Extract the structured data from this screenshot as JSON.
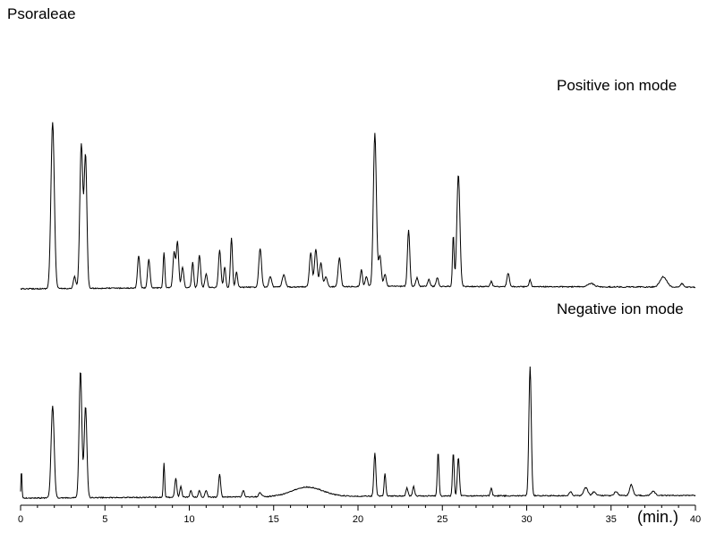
{
  "figure": {
    "title": "Psoraleae",
    "x_unit_label": "(min.)"
  },
  "chart_data": {
    "type": "line",
    "title": "Psoraleae",
    "xlabel": "(min.)",
    "ylabel": "",
    "xlim": [
      0,
      40
    ],
    "x_ticks": [
      "0",
      "5",
      "10",
      "15",
      "20",
      "25",
      "30",
      "35",
      "40"
    ],
    "x_tick_values": [
      0,
      5,
      10,
      15,
      20,
      25,
      30,
      35,
      40
    ],
    "grid": false,
    "legend": "none",
    "line_color": "#000000",
    "series": [
      {
        "name": "Positive ion mode",
        "baseline_drift": [
          [
            0,
            0
          ],
          [
            14,
            0.01
          ],
          [
            22,
            0.015
          ],
          [
            40,
            0.01
          ]
        ],
        "peaks": [
          [
            1.9,
            0.98,
            0.1
          ],
          [
            3.2,
            0.07,
            0.07
          ],
          [
            3.6,
            0.85,
            0.09
          ],
          [
            3.85,
            0.78,
            0.08
          ],
          [
            7.0,
            0.19,
            0.07
          ],
          [
            7.6,
            0.17,
            0.07
          ],
          [
            8.5,
            0.21,
            0.05
          ],
          [
            9.1,
            0.21,
            0.07
          ],
          [
            9.3,
            0.27,
            0.07
          ],
          [
            9.6,
            0.12,
            0.07
          ],
          [
            10.2,
            0.15,
            0.06
          ],
          [
            10.6,
            0.19,
            0.07
          ],
          [
            11.0,
            0.08,
            0.07
          ],
          [
            11.8,
            0.22,
            0.07
          ],
          [
            12.1,
            0.12,
            0.06
          ],
          [
            12.5,
            0.29,
            0.06
          ],
          [
            12.8,
            0.09,
            0.06
          ],
          [
            14.2,
            0.23,
            0.08
          ],
          [
            14.8,
            0.06,
            0.08
          ],
          [
            15.6,
            0.07,
            0.09
          ],
          [
            17.2,
            0.2,
            0.08
          ],
          [
            17.5,
            0.22,
            0.08
          ],
          [
            17.8,
            0.14,
            0.08
          ],
          [
            18.1,
            0.06,
            0.08
          ],
          [
            18.9,
            0.17,
            0.08
          ],
          [
            20.2,
            0.1,
            0.06
          ],
          [
            20.5,
            0.06,
            0.07
          ],
          [
            21.0,
            0.9,
            0.09
          ],
          [
            21.3,
            0.18,
            0.08
          ],
          [
            21.6,
            0.07,
            0.07
          ],
          [
            23.0,
            0.33,
            0.07
          ],
          [
            23.5,
            0.05,
            0.07
          ],
          [
            24.2,
            0.04,
            0.07
          ],
          [
            24.7,
            0.05,
            0.07
          ],
          [
            25.65,
            0.3,
            0.05
          ],
          [
            25.95,
            0.66,
            0.09
          ],
          [
            27.9,
            0.03,
            0.06
          ],
          [
            28.9,
            0.08,
            0.07
          ],
          [
            30.2,
            0.04,
            0.06
          ],
          [
            33.8,
            0.02,
            0.2
          ],
          [
            38.1,
            0.06,
            0.2
          ],
          [
            39.2,
            0.02,
            0.1
          ]
        ]
      },
      {
        "name": "Negative ion mode",
        "baseline_drift": [
          [
            0,
            0
          ],
          [
            15,
            0.01
          ],
          [
            21,
            0.015
          ],
          [
            40,
            0.02
          ]
        ],
        "peaks": [
          [
            0.05,
            0.21,
            0.03
          ],
          [
            1.9,
            0.69,
            0.09
          ],
          [
            3.55,
            0.95,
            0.08
          ],
          [
            3.85,
            0.68,
            0.08
          ],
          [
            8.5,
            0.26,
            0.04
          ],
          [
            9.2,
            0.14,
            0.06
          ],
          [
            9.5,
            0.08,
            0.06
          ],
          [
            10.1,
            0.05,
            0.06
          ],
          [
            10.6,
            0.05,
            0.06
          ],
          [
            11.0,
            0.05,
            0.06
          ],
          [
            11.8,
            0.17,
            0.06
          ],
          [
            13.2,
            0.05,
            0.06
          ],
          [
            14.2,
            0.03,
            0.08
          ],
          [
            17.0,
            0.07,
            0.9
          ],
          [
            21.0,
            0.32,
            0.06
          ],
          [
            21.6,
            0.17,
            0.05
          ],
          [
            22.9,
            0.06,
            0.06
          ],
          [
            23.3,
            0.07,
            0.06
          ],
          [
            24.75,
            0.33,
            0.05
          ],
          [
            25.65,
            0.32,
            0.05
          ],
          [
            25.95,
            0.29,
            0.06
          ],
          [
            27.9,
            0.06,
            0.05
          ],
          [
            30.2,
            0.96,
            0.07
          ],
          [
            32.6,
            0.03,
            0.08
          ],
          [
            33.5,
            0.06,
            0.12
          ],
          [
            34.0,
            0.03,
            0.1
          ],
          [
            35.3,
            0.03,
            0.1
          ],
          [
            36.2,
            0.08,
            0.1
          ],
          [
            37.5,
            0.03,
            0.12
          ]
        ]
      }
    ]
  }
}
